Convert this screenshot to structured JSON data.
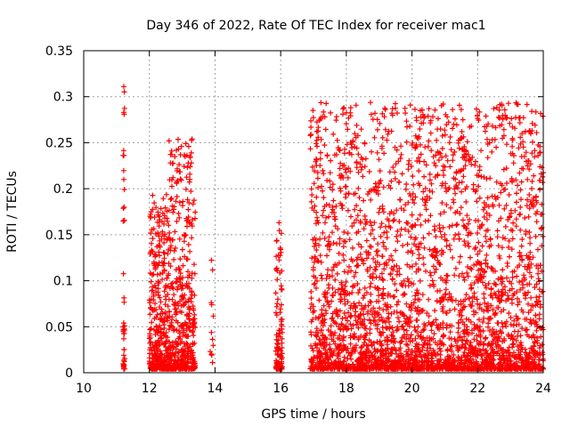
{
  "chart_data": {
    "type": "scatter",
    "title": "Day 346 of 2022, Rate Of TEC Index for receiver mac1",
    "xlabel": "GPS time / hours",
    "ylabel": "ROTI / TECUs",
    "xlim": [
      10,
      24
    ],
    "ylim": [
      0,
      0.35
    ],
    "x_ticks": [
      "10",
      "12",
      "14",
      "16",
      "18",
      "20",
      "22",
      "24"
    ],
    "y_ticks": [
      "0",
      "0.05",
      "0.1",
      "0.15",
      "0.2",
      "0.25",
      "0.3",
      "0.35"
    ],
    "grid": true,
    "marker": "+",
    "series_color": "#ff0000",
    "clusters": [
      {
        "x_range": [
          11.2,
          11.25
        ],
        "density": 40,
        "y_max": 0.31
      },
      {
        "x_range": [
          12.0,
          12.6
        ],
        "density": 400,
        "y_max": 0.19
      },
      {
        "x_range": [
          12.6,
          13.4
        ],
        "density": 450,
        "y_max": 0.25
      },
      {
        "x_range": [
          13.85,
          13.95
        ],
        "density": 12,
        "y_max": 0.125
      },
      {
        "x_range": [
          15.85,
          16.05
        ],
        "density": 120,
        "y_max": 0.16
      },
      {
        "x_range": [
          16.9,
          24.0
        ],
        "density": 3200,
        "y_max": 0.29
      }
    ],
    "highlights": [
      {
        "x": 11.22,
        "y": 0.311
      },
      {
        "x": 11.22,
        "y": 0.283
      },
      {
        "x": 11.22,
        "y": 0.236
      },
      {
        "x": 11.22,
        "y": 0.21
      },
      {
        "x": 11.23,
        "y": 0.18
      },
      {
        "x": 11.22,
        "y": 0.165
      },
      {
        "x": 12.6,
        "y": 0.252
      },
      {
        "x": 13.2,
        "y": 0.246
      },
      {
        "x": 13.28,
        "y": 0.228
      },
      {
        "x": 15.95,
        "y": 0.163
      },
      {
        "x": 17.15,
        "y": 0.163
      },
      {
        "x": 19.65,
        "y": 0.233
      },
      {
        "x": 19.6,
        "y": 0.207
      },
      {
        "x": 20.95,
        "y": 0.22
      },
      {
        "x": 21.5,
        "y": 0.286
      },
      {
        "x": 21.55,
        "y": 0.275
      },
      {
        "x": 21.52,
        "y": 0.262
      },
      {
        "x": 21.6,
        "y": 0.235
      },
      {
        "x": 21.65,
        "y": 0.238
      },
      {
        "x": 23.65,
        "y": 0.2
      },
      {
        "x": 23.9,
        "y": 0.209
      },
      {
        "x": 23.95,
        "y": 0.183
      },
      {
        "x": 23.3,
        "y": 0.155
      },
      {
        "x": 23.95,
        "y": 0.138
      }
    ]
  }
}
